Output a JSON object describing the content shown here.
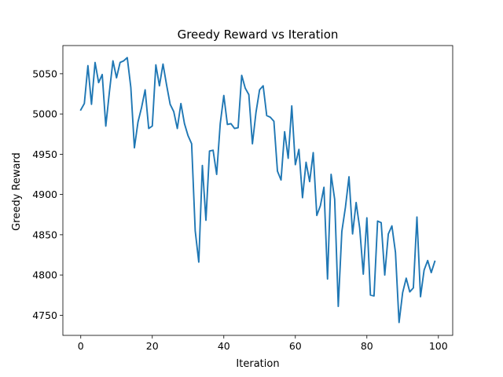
{
  "chart_data": {
    "type": "line",
    "title": "Greedy Reward vs Iteration",
    "xlabel": "Iteration",
    "ylabel": "Greedy Reward",
    "xlim": [
      -5,
      104
    ],
    "ylim": [
      4725,
      5085
    ],
    "xticks": [
      0,
      20,
      40,
      60,
      80,
      100
    ],
    "yticks": [
      4750,
      4800,
      4850,
      4900,
      4950,
      5000,
      5050
    ],
    "grid": false,
    "line_color": "#1f77b4",
    "series": [
      {
        "x": [
          0,
          1,
          2,
          3,
          4,
          5,
          6,
          7,
          8,
          9,
          10,
          11,
          12,
          13,
          14,
          15,
          16,
          17,
          18,
          19,
          20,
          21,
          22,
          23,
          24,
          25,
          26,
          27,
          28,
          29,
          30,
          31,
          32,
          33,
          34,
          35,
          36,
          37,
          38,
          39,
          40,
          41,
          42,
          43,
          44,
          45,
          46,
          47,
          48,
          49,
          50,
          51,
          52,
          53,
          54,
          55,
          56,
          57,
          58,
          59,
          60,
          61,
          62,
          63,
          64,
          65,
          66,
          67,
          68,
          69,
          70,
          71,
          72,
          73,
          74,
          75,
          76,
          77,
          78,
          79,
          80,
          81,
          82,
          83,
          84,
          85,
          86,
          87,
          88,
          89,
          90,
          91,
          92,
          93,
          94,
          95,
          96,
          97,
          98,
          99
        ],
        "values": [
          5005,
          5013,
          5060,
          5012,
          5064,
          5039,
          5049,
          4985,
          5027,
          5066,
          5045,
          5064,
          5066,
          5070,
          5033,
          4958,
          4990,
          5008,
          5030,
          4982,
          4985,
          5061,
          5035,
          5062,
          5036,
          5012,
          5003,
          4982,
          5013,
          4988,
          4973,
          4963,
          4855,
          4816,
          4936,
          4868,
          4954,
          4955,
          4925,
          4988,
          5023,
          4987,
          4988,
          4982,
          4983,
          5048,
          5032,
          5024,
          4963,
          5002,
          5030,
          5035,
          4998,
          4996,
          4991,
          4929,
          4918,
          4978,
          4945,
          5010,
          4937,
          4956,
          4896,
          4940,
          4916,
          4952,
          4874,
          4886,
          4909,
          4795,
          4925,
          4894,
          4761,
          4854,
          4884,
          4922,
          4851,
          4890,
          4858,
          4801,
          4871,
          4775,
          4774,
          4867,
          4865,
          4800,
          4851,
          4861,
          4828,
          4741,
          4778,
          4796,
          4779,
          4784,
          4872,
          4773,
          4806,
          4818,
          4803,
          4817
        ]
      }
    ]
  }
}
